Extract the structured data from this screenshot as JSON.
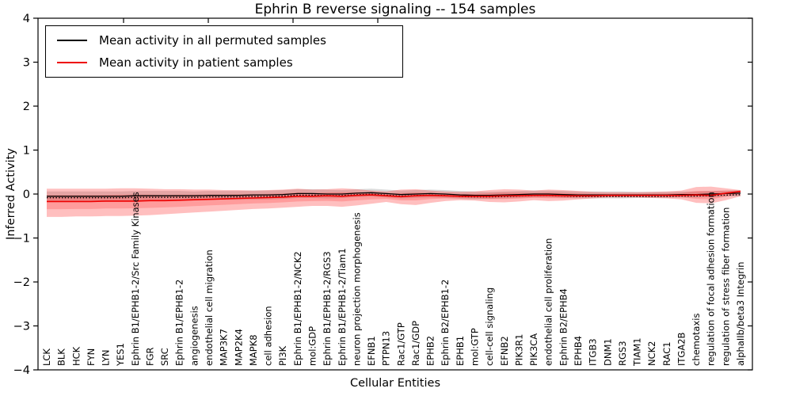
{
  "figure": {
    "title": "Ephrin B reverse signaling -- 154 samples",
    "xlabel": "Cellular Entities",
    "ylabel": "Inferred Activity",
    "legend": [
      {
        "label": "Mean activity in all permuted samples",
        "color": "#000000"
      },
      {
        "label": "Mean activity in patient samples",
        "color": "#ee0000"
      }
    ]
  },
  "chart_data": {
    "type": "line",
    "title": "Ephrin B reverse signaling -- 154 samples",
    "xlabel": "Cellular Entities",
    "ylabel": "Inferred Activity",
    "ylim": [
      -4,
      4
    ],
    "yticks": [
      4,
      3,
      2,
      1,
      0,
      -1,
      -2,
      -3,
      -4
    ],
    "grid": false,
    "legend_position": "upper left",
    "categories": [
      "LCK",
      "BLK",
      "HCK",
      "FYN",
      "LYN",
      "YES1",
      "Ephrin B1/EPHB1-2/Src Family Kinases",
      "FGR",
      "SRC",
      "Ephrin B1/EPHB1-2",
      "angiogenesis",
      "endothelial cell migration",
      "MAP3K7",
      "MAP2K4",
      "MAPK8",
      "cell adhesion",
      "PI3K",
      "Ephrin B1/EPHB1-2/NCK2",
      "mol:GDP",
      "Ephrin B1/EPHB1-2/RGS3",
      "Ephrin B1/EPHB1-2/Tiam1",
      "neuron projection morphogenesis",
      "EFNB1",
      "PTPN13",
      "Rac1/GTP",
      "Rac1/GDP",
      "EPHB2",
      "Ephrin B2/EPHB1-2",
      "EPHB1",
      "mol:GTP",
      "cell-cell signaling",
      "EFNB2",
      "PIK3R1",
      "PIK3CA",
      "endothelial cell proliferation",
      "Ephrin B2/EPHB4",
      "EPHB4",
      "ITGB3",
      "DNM1",
      "RGS3",
      "TIAM1",
      "NCK2",
      "RAC1",
      "ITGA2B",
      "chemotaxis",
      "regulation of focal adhesion formation",
      "regulation of stress fiber formation",
      "alphaIIb/beta3 Integrin"
    ],
    "series": [
      {
        "name": "Mean activity in all permuted samples",
        "color": "#000000",
        "style": "solid",
        "values": [
          -0.05,
          -0.05,
          -0.05,
          -0.05,
          -0.05,
          -0.05,
          -0.04,
          -0.04,
          -0.04,
          -0.04,
          -0.04,
          -0.03,
          -0.03,
          -0.03,
          -0.02,
          -0.02,
          -0.01,
          0.01,
          0.01,
          0.0,
          0.0,
          0.02,
          0.03,
          0.01,
          -0.01,
          0.0,
          0.01,
          0.0,
          -0.02,
          -0.03,
          -0.03,
          -0.02,
          -0.01,
          0.0,
          0.0,
          -0.01,
          -0.02,
          -0.02,
          -0.02,
          -0.02,
          -0.02,
          -0.02,
          -0.02,
          -0.01,
          -0.01,
          0.0,
          0.01,
          0.02
        ]
      },
      {
        "name": "Mean activity in patient samples",
        "color": "#ee0000",
        "style": "solid",
        "values": [
          -0.17,
          -0.17,
          -0.17,
          -0.17,
          -0.16,
          -0.16,
          -0.16,
          -0.15,
          -0.15,
          -0.14,
          -0.13,
          -0.12,
          -0.11,
          -0.1,
          -0.09,
          -0.08,
          -0.07,
          -0.05,
          -0.05,
          -0.04,
          -0.05,
          -0.03,
          -0.02,
          -0.04,
          -0.06,
          -0.04,
          -0.03,
          -0.04,
          -0.05,
          -0.05,
          -0.05,
          -0.04,
          -0.04,
          -0.03,
          -0.03,
          -0.04,
          -0.04,
          -0.04,
          -0.03,
          -0.03,
          -0.03,
          -0.03,
          -0.03,
          -0.03,
          -0.02,
          -0.03,
          0.02,
          0.06
        ]
      }
    ],
    "dotted_reference_offset": -0.035,
    "bands": [
      {
        "name": "permuted-samples-range",
        "color": "rgba(0,0,0,0.14)",
        "upper": [
          0.06,
          0.06,
          0.06,
          0.06,
          0.06,
          0.06,
          0.07,
          0.07,
          0.07,
          0.07,
          0.06,
          0.07,
          0.07,
          0.07,
          0.08,
          0.08,
          0.09,
          0.11,
          0.11,
          0.1,
          0.09,
          0.11,
          0.12,
          0.1,
          0.08,
          0.09,
          0.1,
          0.09,
          0.07,
          0.06,
          0.05,
          0.06,
          0.07,
          0.08,
          0.08,
          0.07,
          0.06,
          0.06,
          0.06,
          0.06,
          0.05,
          0.05,
          0.05,
          0.06,
          0.06,
          0.07,
          0.08,
          0.09
        ],
        "lower": [
          -0.16,
          -0.16,
          -0.16,
          -0.16,
          -0.16,
          -0.16,
          -0.15,
          -0.15,
          -0.15,
          -0.15,
          -0.14,
          -0.13,
          -0.13,
          -0.13,
          -0.12,
          -0.12,
          -0.11,
          -0.09,
          -0.09,
          -0.1,
          -0.09,
          -0.07,
          -0.06,
          -0.08,
          -0.1,
          -0.09,
          -0.08,
          -0.09,
          -0.11,
          -0.12,
          -0.11,
          -0.1,
          -0.09,
          -0.08,
          -0.08,
          -0.09,
          -0.1,
          -0.1,
          -0.1,
          -0.1,
          -0.09,
          -0.09,
          -0.09,
          -0.08,
          -0.08,
          -0.07,
          -0.06,
          -0.05
        ]
      },
      {
        "name": "patient-samples-range-outer",
        "color": "rgba(255,0,0,0.25)",
        "upper": [
          0.12,
          0.12,
          0.12,
          0.12,
          0.12,
          0.13,
          0.13,
          0.12,
          0.11,
          0.11,
          0.1,
          0.1,
          0.09,
          0.09,
          0.08,
          0.09,
          0.1,
          0.12,
          0.1,
          0.11,
          0.13,
          0.11,
          0.08,
          0.06,
          0.1,
          0.11,
          0.08,
          0.06,
          0.05,
          0.06,
          0.09,
          0.11,
          0.1,
          0.08,
          0.1,
          0.09,
          0.07,
          0.05,
          0.04,
          0.04,
          0.04,
          0.05,
          0.06,
          0.08,
          0.16,
          0.17,
          0.13,
          0.09
        ],
        "lower": [
          -0.52,
          -0.52,
          -0.51,
          -0.51,
          -0.5,
          -0.5,
          -0.49,
          -0.48,
          -0.46,
          -0.44,
          -0.42,
          -0.4,
          -0.38,
          -0.36,
          -0.34,
          -0.33,
          -0.31,
          -0.29,
          -0.27,
          -0.27,
          -0.29,
          -0.26,
          -0.22,
          -0.18,
          -0.23,
          -0.25,
          -0.2,
          -0.16,
          -0.14,
          -0.15,
          -0.18,
          -0.19,
          -0.17,
          -0.14,
          -0.16,
          -0.15,
          -0.12,
          -0.1,
          -0.08,
          -0.08,
          -0.08,
          -0.09,
          -0.1,
          -0.12,
          -0.2,
          -0.21,
          -0.14,
          -0.05
        ]
      },
      {
        "name": "patient-samples-range-inner",
        "color": "rgba(255,0,0,0.18)",
        "scale_of_outer": 0.5
      }
    ]
  }
}
